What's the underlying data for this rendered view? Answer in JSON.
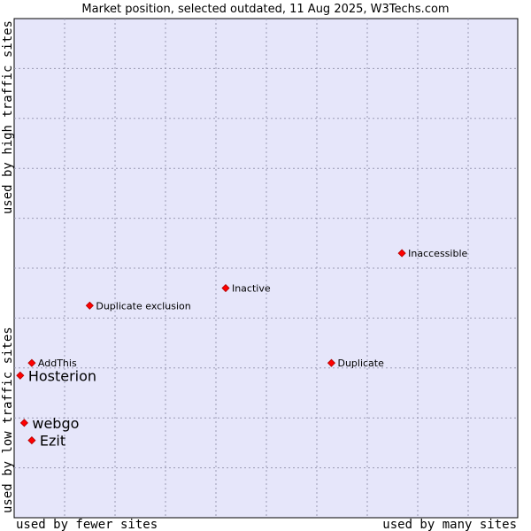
{
  "chart_data": {
    "type": "scatter",
    "title": "Market position, selected outdated, 11 Aug 2025, W3Techs.com",
    "xlabel_left": "used by fewer sites",
    "xlabel_right": "used by many sites",
    "ylabel_bottom": "used by low traffic sites",
    "ylabel_top": "used by high traffic sites",
    "xlim": [
      0,
      100
    ],
    "ylim": [
      0,
      100
    ],
    "grid": true,
    "background_color": "#e6e6fa",
    "point_color": "#ff0000",
    "points": [
      {
        "label": "Inaccessible",
        "x": 77,
        "y": 53,
        "size": "small"
      },
      {
        "label": "Inactive",
        "x": 42,
        "y": 46,
        "size": "small"
      },
      {
        "label": "Duplicate exclusion",
        "x": 15,
        "y": 42.5,
        "size": "small"
      },
      {
        "label": "AddThis",
        "x": 3.5,
        "y": 31,
        "size": "small"
      },
      {
        "label": "Duplicate",
        "x": 63,
        "y": 31,
        "size": "small"
      },
      {
        "label": "Hosterion",
        "x": 1.2,
        "y": 28.5,
        "size": "large"
      },
      {
        "label": "webgo",
        "x": 2,
        "y": 19,
        "size": "large"
      },
      {
        "label": "Ezit",
        "x": 3.5,
        "y": 15.5,
        "size": "large"
      }
    ]
  }
}
